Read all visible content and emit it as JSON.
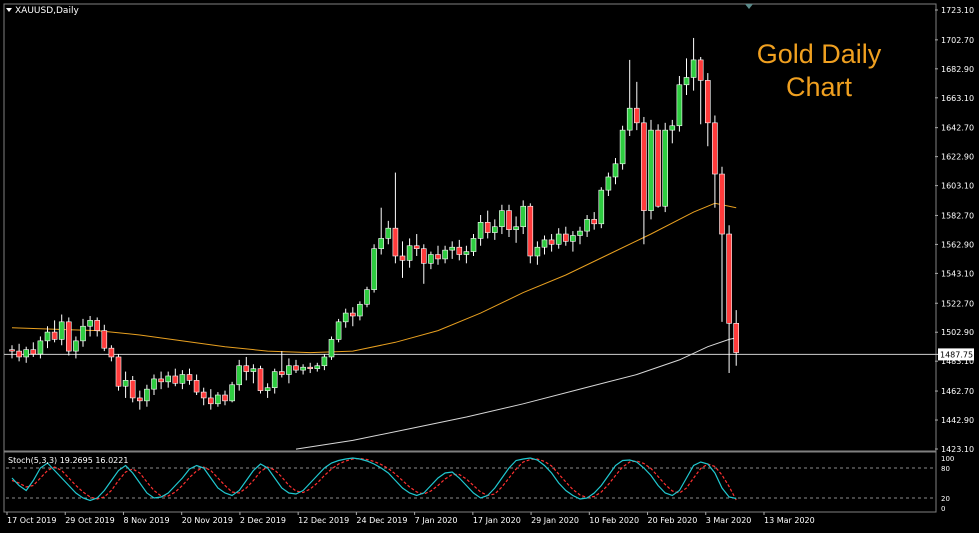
{
  "symbol_label": "XAUUSD,Daily",
  "overlay": {
    "line1": "Gold Daily",
    "line2": "Chart"
  },
  "colors": {
    "background": "#000000",
    "bull": "#2ecc40",
    "bear": "#ff3b3b",
    "ma_short": "#e8a020",
    "ma_long": "#d8d8d8",
    "stoch_main": "#20c8d0",
    "stoch_signal": "#ff3030",
    "overlay_text": "#f0a020"
  },
  "stoch_label": "Stoch(5,3,3) 19.2695 16.0221",
  "chart_data": {
    "type": "candlestick",
    "title": "",
    "price_axis": {
      "ylim": [
        1423.1,
        1723.1
      ],
      "ticks": [
        "1723.10",
        "1702.70",
        "1682.90",
        "1663.10",
        "1642.70",
        "1622.90",
        "1603.10",
        "1582.70",
        "1562.90",
        "1543.10",
        "1522.70",
        "1502.90",
        "1483.10",
        "1462.70",
        "1442.90",
        "1423.10"
      ],
      "current_price": "1487.75"
    },
    "x_tick_labels": [
      "17 Oct 2019",
      "29 Oct 2019",
      "8 Nov 2019",
      "20 Nov 2019",
      "2 Dec 2019",
      "12 Dec 2019",
      "24 Dec 2019",
      "7 Jan 2020",
      "17 Jan 2020",
      "29 Jan 2020",
      "10 Feb 2020",
      "20 Feb 2020",
      "3 Mar 2020",
      "13 Mar 2020"
    ],
    "candles": [
      [
        1491,
        1494,
        1485,
        1490
      ],
      [
        1490,
        1495,
        1483,
        1486
      ],
      [
        1486,
        1493,
        1482,
        1491
      ],
      [
        1491,
        1496,
        1486,
        1488
      ],
      [
        1488,
        1500,
        1485,
        1497
      ],
      [
        1497,
        1507,
        1492,
        1503
      ],
      [
        1503,
        1511,
        1496,
        1498
      ],
      [
        1498,
        1515,
        1494,
        1510
      ],
      [
        1510,
        1513,
        1487,
        1490
      ],
      [
        1490,
        1500,
        1485,
        1497
      ],
      [
        1497,
        1512,
        1493,
        1507
      ],
      [
        1507,
        1514,
        1500,
        1511
      ],
      [
        1511,
        1513,
        1500,
        1504
      ],
      [
        1504,
        1508,
        1490,
        1492
      ],
      [
        1492,
        1494,
        1483,
        1486
      ],
      [
        1486,
        1488,
        1463,
        1466
      ],
      [
        1466,
        1476,
        1458,
        1470
      ],
      [
        1470,
        1473,
        1455,
        1458
      ],
      [
        1458,
        1463,
        1450,
        1456
      ],
      [
        1456,
        1467,
        1452,
        1464
      ],
      [
        1464,
        1474,
        1460,
        1471
      ],
      [
        1471,
        1476,
        1464,
        1469
      ],
      [
        1469,
        1476,
        1465,
        1473
      ],
      [
        1473,
        1478,
        1466,
        1468
      ],
      [
        1468,
        1477,
        1464,
        1474
      ],
      [
        1474,
        1478,
        1467,
        1470
      ],
      [
        1470,
        1474,
        1460,
        1462
      ],
      [
        1462,
        1465,
        1453,
        1458
      ],
      [
        1458,
        1464,
        1450,
        1454
      ],
      [
        1454,
        1462,
        1452,
        1460
      ],
      [
        1460,
        1463,
        1453,
        1456
      ],
      [
        1456,
        1469,
        1455,
        1467
      ],
      [
        1467,
        1484,
        1463,
        1480
      ],
      [
        1480,
        1486,
        1470,
        1476
      ],
      [
        1476,
        1481,
        1468,
        1478
      ],
      [
        1478,
        1480,
        1461,
        1463
      ],
      [
        1463,
        1468,
        1458,
        1465
      ],
      [
        1465,
        1478,
        1461,
        1476
      ],
      [
        1476,
        1490,
        1472,
        1474
      ],
      [
        1474,
        1485,
        1468,
        1480
      ],
      [
        1480,
        1484,
        1475,
        1477
      ],
      [
        1477,
        1481,
        1474,
        1479
      ],
      [
        1479,
        1482,
        1475,
        1478
      ],
      [
        1478,
        1482,
        1476,
        1480
      ],
      [
        1480,
        1488,
        1477,
        1486
      ],
      [
        1486,
        1500,
        1484,
        1498
      ],
      [
        1498,
        1512,
        1496,
        1510
      ],
      [
        1510,
        1519,
        1506,
        1516
      ],
      [
        1516,
        1520,
        1507,
        1514
      ],
      [
        1514,
        1524,
        1511,
        1522
      ],
      [
        1522,
        1534,
        1520,
        1532
      ],
      [
        1532,
        1563,
        1530,
        1560
      ],
      [
        1560,
        1588,
        1556,
        1567
      ],
      [
        1567,
        1579,
        1563,
        1574
      ],
      [
        1574,
        1612,
        1550,
        1555
      ],
      [
        1555,
        1565,
        1540,
        1552
      ],
      [
        1552,
        1567,
        1547,
        1562
      ],
      [
        1562,
        1570,
        1555,
        1560
      ],
      [
        1560,
        1563,
        1536,
        1550
      ],
      [
        1550,
        1558,
        1546,
        1556
      ],
      [
        1556,
        1562,
        1549,
        1553
      ],
      [
        1553,
        1562,
        1550,
        1559
      ],
      [
        1559,
        1565,
        1553,
        1561
      ],
      [
        1561,
        1566,
        1552,
        1556
      ],
      [
        1556,
        1562,
        1550,
        1558
      ],
      [
        1558,
        1570,
        1555,
        1567
      ],
      [
        1567,
        1583,
        1562,
        1578
      ],
      [
        1578,
        1586,
        1567,
        1571
      ],
      [
        1571,
        1580,
        1566,
        1575
      ],
      [
        1575,
        1590,
        1570,
        1586
      ],
      [
        1586,
        1590,
        1568,
        1573
      ],
      [
        1573,
        1582,
        1564,
        1575
      ],
      [
        1575,
        1593,
        1570,
        1589
      ],
      [
        1589,
        1591,
        1550,
        1555
      ],
      [
        1555,
        1565,
        1549,
        1561
      ],
      [
        1561,
        1569,
        1556,
        1566
      ],
      [
        1566,
        1570,
        1558,
        1563
      ],
      [
        1563,
        1574,
        1560,
        1570
      ],
      [
        1570,
        1575,
        1562,
        1565
      ],
      [
        1565,
        1572,
        1558,
        1569
      ],
      [
        1569,
        1575,
        1563,
        1572
      ],
      [
        1572,
        1583,
        1568,
        1580
      ],
      [
        1580,
        1585,
        1573,
        1577
      ],
      [
        1577,
        1602,
        1574,
        1600
      ],
      [
        1600,
        1612,
        1596,
        1609
      ],
      [
        1609,
        1622,
        1604,
        1618
      ],
      [
        1618,
        1644,
        1614,
        1641
      ],
      [
        1641,
        1689,
        1637,
        1656
      ],
      [
        1656,
        1674,
        1641,
        1646
      ],
      [
        1646,
        1650,
        1563,
        1586
      ],
      [
        1586,
        1648,
        1580,
        1641
      ],
      [
        1641,
        1645,
        1588,
        1589
      ],
      [
        1589,
        1646,
        1585,
        1641
      ],
      [
        1641,
        1648,
        1632,
        1644
      ],
      [
        1644,
        1678,
        1640,
        1672
      ],
      [
        1672,
        1690,
        1665,
        1677
      ],
      [
        1677,
        1704,
        1668,
        1689
      ],
      [
        1689,
        1691,
        1645,
        1675
      ],
      [
        1675,
        1680,
        1630,
        1646
      ],
      [
        1646,
        1651,
        1588,
        1611
      ],
      [
        1611,
        1616,
        1510,
        1570
      ],
      [
        1570,
        1576,
        1475,
        1509
      ],
      [
        1509,
        1518,
        1480,
        1489
      ]
    ],
    "ma_short": {
      "name": "",
      "points": [
        [
          0,
          1506
        ],
        [
          6,
          1505
        ],
        [
          12,
          1504
        ],
        [
          18,
          1501
        ],
        [
          24,
          1497
        ],
        [
          30,
          1493
        ],
        [
          36,
          1490
        ],
        [
          42,
          1489
        ],
        [
          48,
          1490
        ],
        [
          54,
          1496
        ],
        [
          60,
          1504
        ],
        [
          66,
          1516
        ],
        [
          72,
          1530
        ],
        [
          78,
          1542
        ],
        [
          84,
          1556
        ],
        [
          90,
          1570
        ],
        [
          96,
          1585
        ],
        [
          99,
          1591
        ],
        [
          102,
          1588
        ]
      ]
    },
    "ma_long": {
      "name": "",
      "points": [
        [
          40,
          1423
        ],
        [
          48,
          1429
        ],
        [
          56,
          1437
        ],
        [
          64,
          1445
        ],
        [
          72,
          1454
        ],
        [
          80,
          1464
        ],
        [
          88,
          1474
        ],
        [
          94,
          1484
        ],
        [
          98,
          1493
        ],
        [
          101,
          1498
        ],
        [
          102,
          1499
        ]
      ]
    },
    "stochastic": {
      "label": "Stoch(5,3,3) 19.2695 16.0221",
      "ylim": [
        0,
        100
      ],
      "levels": [
        20,
        80
      ],
      "tick_labels": [
        "100",
        "80",
        "20",
        "0"
      ],
      "main": [
        60,
        45,
        35,
        55,
        80,
        90,
        75,
        60,
        45,
        30,
        20,
        15,
        20,
        35,
        55,
        75,
        85,
        70,
        50,
        30,
        20,
        22,
        30,
        45,
        60,
        78,
        85,
        80,
        60,
        40,
        30,
        25,
        35,
        55,
        75,
        88,
        80,
        60,
        40,
        30,
        28,
        35,
        50,
        65,
        80,
        90,
        95,
        98,
        100,
        98,
        94,
        88,
        80,
        70,
        55,
        40,
        30,
        25,
        30,
        45,
        60,
        70,
        72,
        60,
        45,
        30,
        20,
        25,
        40,
        60,
        80,
        95,
        98,
        100,
        96,
        85,
        70,
        50,
        35,
        25,
        18,
        20,
        30,
        45,
        65,
        85,
        95,
        96,
        92,
        80,
        65,
        45,
        30,
        25,
        35,
        60,
        85,
        92,
        88,
        70,
        40,
        22,
        19
      ],
      "signal": [
        55,
        50,
        42,
        45,
        60,
        75,
        82,
        75,
        60,
        45,
        32,
        22,
        18,
        22,
        35,
        55,
        72,
        78,
        70,
        52,
        35,
        24,
        24,
        32,
        45,
        61,
        74,
        82,
        75,
        60,
        45,
        32,
        30,
        40,
        55,
        73,
        82,
        76,
        62,
        45,
        34,
        31,
        38,
        50,
        65,
        78,
        88,
        94,
        98,
        99,
        97,
        93,
        87,
        79,
        68,
        55,
        42,
        32,
        28,
        34,
        45,
        58,
        67,
        67,
        58,
        45,
        32,
        25,
        28,
        42,
        60,
        78,
        92,
        97,
        98,
        93,
        84,
        68,
        52,
        37,
        26,
        21,
        23,
        32,
        47,
        65,
        82,
        92,
        94,
        89,
        79,
        63,
        47,
        34,
        30,
        40,
        60,
        79,
        88,
        83,
        66,
        43,
        16
      ]
    }
  }
}
